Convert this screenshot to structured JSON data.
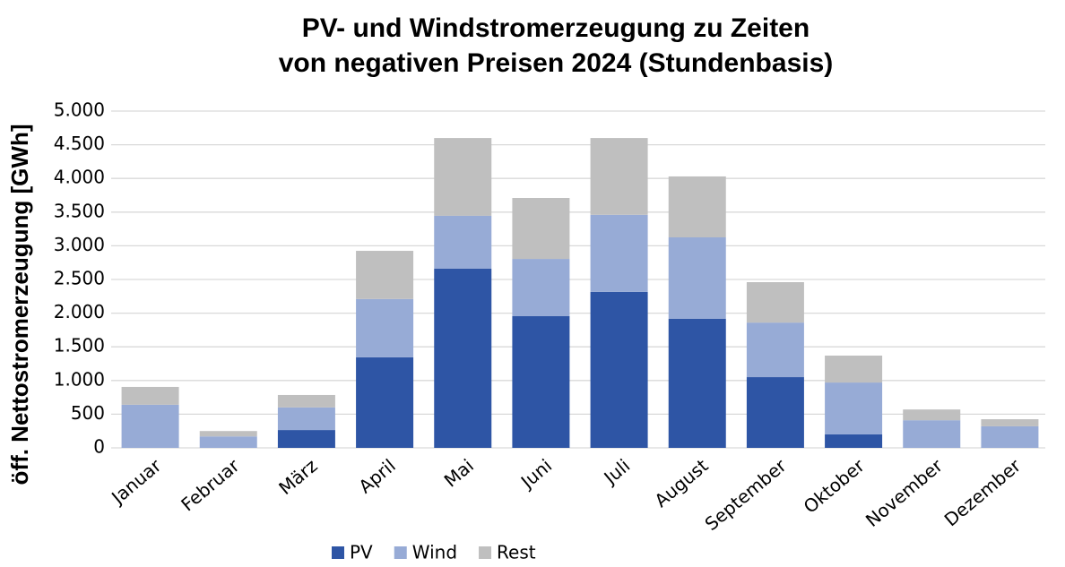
{
  "chart_data": {
    "type": "stacked_bar",
    "title": [
      "PV- und Windstromerzeugung zu Zeiten",
      "von negativen Preisen 2024 (Stundenbasis)"
    ],
    "y_label": "öff. Nettostromerzeugung [GWh]",
    "categories": [
      "Januar",
      "Februar",
      "März",
      "April",
      "Mai",
      "Juni",
      "Juli",
      "August",
      "September",
      "Oktober",
      "November",
      "Dezember"
    ],
    "series": [
      {
        "name": "PV",
        "color": "#2e55a5",
        "values": [
          0,
          0,
          265,
          1345,
          2660,
          1955,
          2315,
          1915,
          1050,
          200,
          0,
          0
        ]
      },
      {
        "name": "Wind",
        "color": "#97abd6",
        "values": [
          640,
          170,
          335,
          865,
          785,
          850,
          1145,
          1210,
          810,
          770,
          410,
          320
        ]
      },
      {
        "name": "Rest",
        "color": "#bfbfbf",
        "values": [
          265,
          80,
          185,
          715,
          1155,
          905,
          1140,
          905,
          600,
          400,
          160,
          105
        ]
      }
    ],
    "ylim": [
      0,
      5000
    ],
    "yticks": [
      0,
      500,
      {
        "value": 1000,
        "label": "1.000"
      },
      {
        "value": 1500,
        "label": "1.500"
      },
      {
        "value": 2000,
        "label": "2.000"
      },
      {
        "value": 2500,
        "label": "2.500"
      },
      {
        "value": 3000,
        "label": "3.000"
      },
      {
        "value": 3500,
        "label": "3.500"
      },
      {
        "value": 4000,
        "label": "4.000"
      },
      {
        "value": 4500,
        "label": "4.500"
      },
      {
        "value": 5000,
        "label": "5.000"
      }
    ],
    "grid": true
  }
}
